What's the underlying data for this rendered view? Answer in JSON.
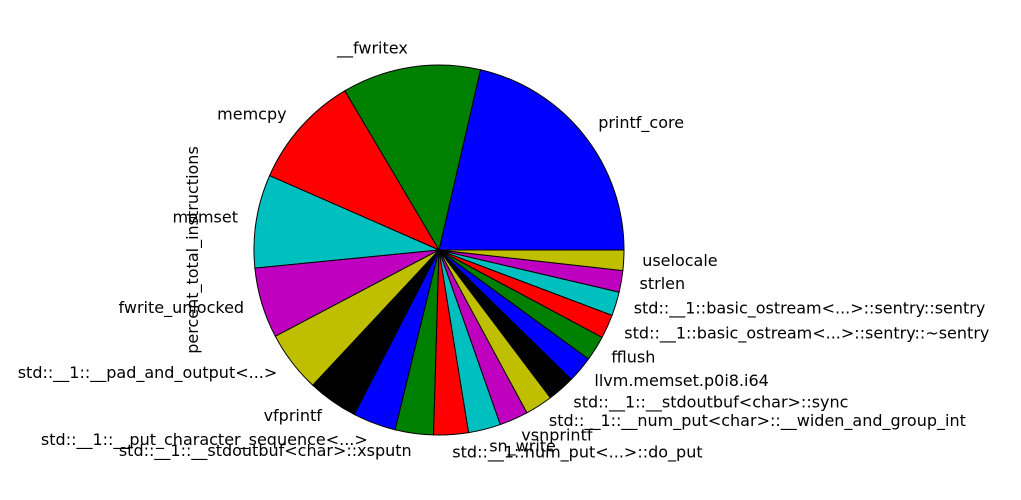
{
  "chart_data": {
    "type": "pie",
    "ylabel": "percent_total_instructions",
    "start_angle_deg": 0,
    "direction": "counterclockwise",
    "slices": [
      {
        "label": "printf_core",
        "value": 20.5,
        "color": "#0000ff"
      },
      {
        "label": "__fwritex",
        "value": 11.6,
        "color": "#008000"
      },
      {
        "label": "memcpy",
        "value": 9.5,
        "color": "#ff0000"
      },
      {
        "label": "memset",
        "value": 7.8,
        "color": "#00bfbf"
      },
      {
        "label": "fwrite_unlocked",
        "value": 5.9,
        "color": "#bf00bf"
      },
      {
        "label": "std::__1::__pad_and_output<...>",
        "value": 5.1,
        "color": "#bfbf00"
      },
      {
        "label": "vfprintf",
        "value": 4.2,
        "color": "#000000"
      },
      {
        "label": "std::__1::__put_character_sequence<...>",
        "value": 3.6,
        "color": "#0000ff"
      },
      {
        "label": "std::__1::__stdoutbuf<char>::xsputn",
        "value": 3.2,
        "color": "#008000"
      },
      {
        "label": "std::__1::num_put<...>::do_put",
        "value": 2.9,
        "color": "#ff0000"
      },
      {
        "label": "sn_write",
        "value": 2.7,
        "color": "#00bfbf"
      },
      {
        "label": "vsnprintf",
        "value": 2.4,
        "color": "#bf00bf"
      },
      {
        "label": "std::__1::__num_put<char>::__widen_and_group_int",
        "value": 2.3,
        "color": "#bfbf00"
      },
      {
        "label": "std::__1::__stdoutbuf<char>::sync",
        "value": 2.3,
        "color": "#000000"
      },
      {
        "label": "llvm.memset.p0i8.i64",
        "value": 2.2,
        "color": "#0000ff"
      },
      {
        "label": "fflush",
        "value": 2.1,
        "color": "#008000"
      },
      {
        "label": "std::__1::basic_ostream<...>::sentry::~sentry",
        "value": 2.0,
        "color": "#ff0000"
      },
      {
        "label": "std::__1::basic_ostream<...>::sentry::sentry",
        "value": 2.0,
        "color": "#00bfbf"
      },
      {
        "label": "strlen",
        "value": 1.8,
        "color": "#bf00bf"
      },
      {
        "label": "uselocale",
        "value": 1.7,
        "color": "#bfbf00"
      }
    ]
  }
}
